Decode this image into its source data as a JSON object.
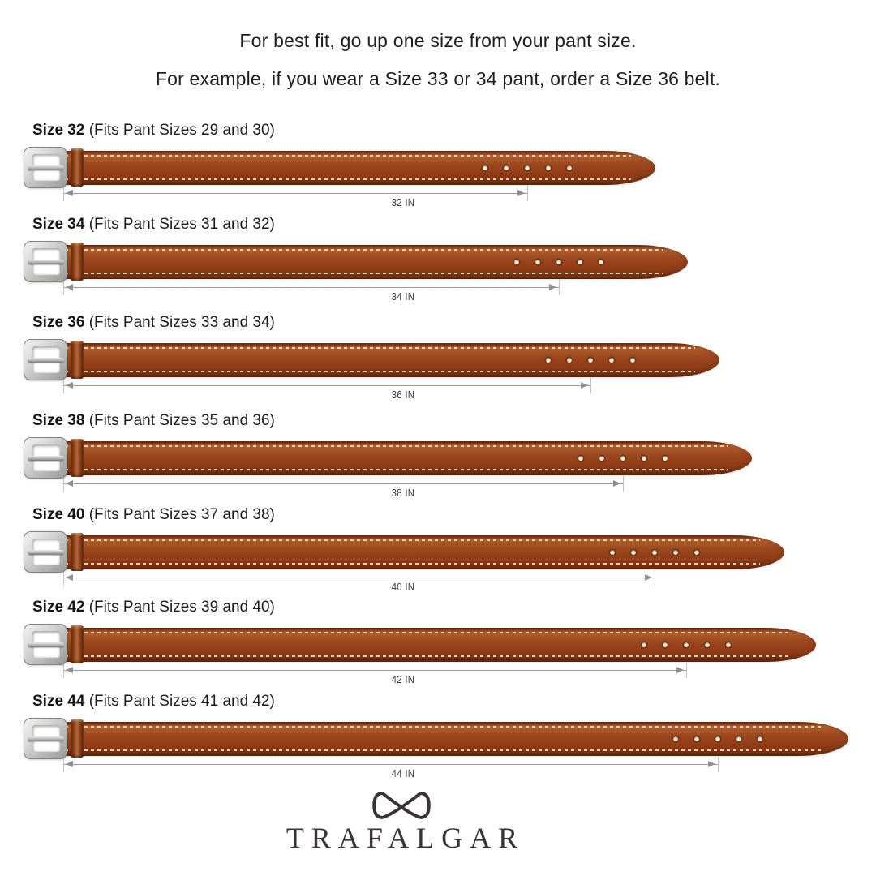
{
  "header": {
    "line1": "For best fit, go up one size from your pant size.",
    "line2": "For example, if you wear a Size 33 or 34 pant, order a Size 36 belt."
  },
  "belts": [
    {
      "size": 32,
      "title": "Size 32",
      "fit": "(Fits Pant Sizes 29 and 30)",
      "length_label": "32 IN"
    },
    {
      "size": 34,
      "title": "Size 34",
      "fit": "(Fits Pant Sizes 31 and 32)",
      "length_label": "34 IN"
    },
    {
      "size": 36,
      "title": "Size 36",
      "fit": "(Fits Pant Sizes 33 and 34)",
      "length_label": "36 IN"
    },
    {
      "size": 38,
      "title": "Size 38",
      "fit": "(Fits Pant Sizes 35 and 36)",
      "length_label": "38 IN"
    },
    {
      "size": 40,
      "title": "Size 40",
      "fit": "(Fits Pant Sizes 37 and 38)",
      "length_label": "40 IN"
    },
    {
      "size": 42,
      "title": "Size 42",
      "fit": "(Fits Pant Sizes 39 and 40)",
      "length_label": "42 IN"
    },
    {
      "size": 44,
      "title": "Size 44",
      "fit": "(Fits Pant Sizes 41 and 42)",
      "length_label": "44 IN"
    }
  ],
  "brand": {
    "name": "TRAFALGAR",
    "icon": "bowtie-logo-icon"
  },
  "colors": {
    "leather_light": "#b26132",
    "leather_mid": "#9d4a20",
    "leather_dark": "#662b10",
    "stitch": "#eadcbb",
    "buckle_silver": "#c2c2c0",
    "dimension_line": "#9d9d9d",
    "text": "#1e1e1e",
    "brand": "#3b3337"
  }
}
